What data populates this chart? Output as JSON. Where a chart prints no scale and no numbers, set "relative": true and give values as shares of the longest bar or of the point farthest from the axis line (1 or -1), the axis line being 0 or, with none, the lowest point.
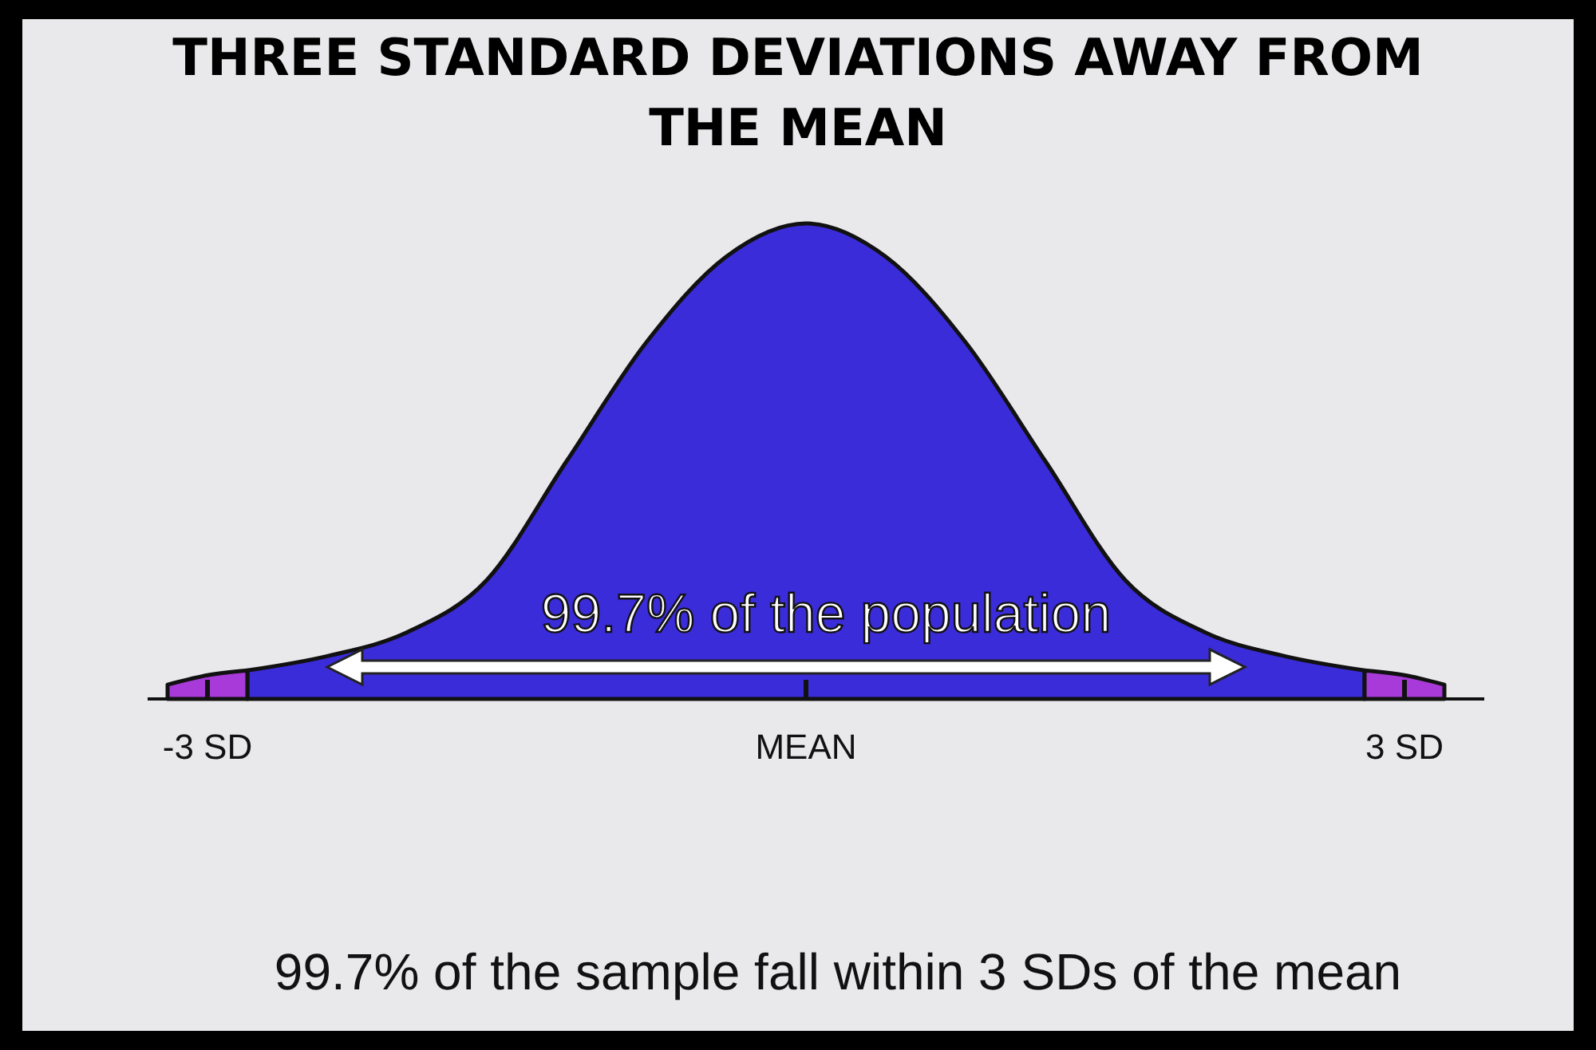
{
  "chart_data": {
    "type": "area",
    "title": "THREE STANDARD DEVIATIONS AWAY FROM THE MEAN",
    "relative": true,
    "xlim": [
      -3.3,
      3.4
    ],
    "xticks": [
      {
        "value": -3,
        "label": "-3 SD"
      },
      {
        "value": 0,
        "label": "MEAN"
      },
      {
        "value": 3,
        "label": "3 SD"
      }
    ],
    "series": [
      {
        "color": "#3a2cd8",
        "x": [
          -2.8,
          -2.4,
          -2,
          -1.6,
          -1.2,
          -0.8,
          -0.4,
          0,
          0.4,
          0.8,
          1.2,
          1.6,
          2,
          2.4,
          2.8
        ],
        "values": [
          0.06,
          0.09,
          0.14,
          0.25,
          0.5,
          0.75,
          0.93,
          1,
          0.93,
          0.75,
          0.5,
          0.25,
          0.14,
          0.09,
          0.06
        ]
      },
      {
        "color": "#a73ad8",
        "x": [
          -3.2,
          -3,
          -2.8
        ],
        "values": [
          0.03,
          0.05,
          0.06
        ]
      },
      {
        "color": "#a73ad8",
        "x": [
          2.8,
          3,
          3.2
        ],
        "values": [
          0.06,
          0.05,
          0.03
        ]
      }
    ],
    "annotations": [
      "99.7% of the population",
      "99.7% of the sample fall within 3 SDs of the mean"
    ]
  }
}
